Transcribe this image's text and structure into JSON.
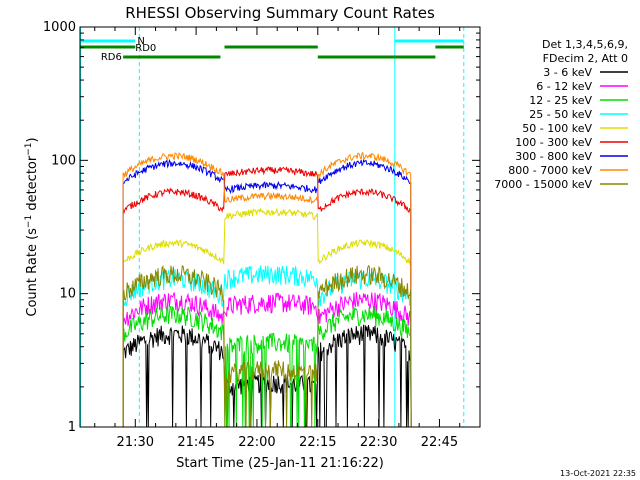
{
  "chart_data": {
    "type": "line",
    "title": "RHESSI Observing Summary Count Rates",
    "ylabel": "Count Rate (s⁻¹ detector⁻¹)",
    "xlabel": "Start Time (25-Jan-11 21:16:22)",
    "yscale": "log",
    "ylim": [
      1,
      1000
    ],
    "y_ticks": [
      "1",
      "10",
      "100",
      "1000"
    ],
    "xlim": [
      "21:16:22",
      "22:55:00"
    ],
    "x_ticks": [
      "21:30",
      "21:45",
      "22:00",
      "22:15",
      "22:30",
      "22:45"
    ],
    "legend_header": [
      "Det 1,3,4,5,6,9,",
      "FDecim 2, Att 0"
    ],
    "legend_position": "right",
    "footer_date": "13-Oct-2021 22:35",
    "series": [
      {
        "name": "3 - 6 keV",
        "color": "#000000",
        "levels": [
          0,
          5,
          2,
          5
        ]
      },
      {
        "name": "6 - 12 keV",
        "color": "#ff00ff",
        "levels": [
          0,
          9,
          8,
          9
        ]
      },
      {
        "name": "12 - 25 keV",
        "color": "#00dd00",
        "levels": [
          0,
          7,
          4,
          7
        ]
      },
      {
        "name": "25 - 50 keV",
        "color": "#00ffff",
        "levels": [
          0,
          13,
          13,
          13
        ]
      },
      {
        "name": "50 - 100 keV",
        "color": "#dddd00",
        "levels": [
          0,
          24,
          38,
          24
        ]
      },
      {
        "name": "100 - 300 keV",
        "color": "#ee0000",
        "levels": [
          0,
          58,
          78,
          58
        ]
      },
      {
        "name": "300 - 800 keV",
        "color": "#0000ee",
        "levels": [
          0,
          95,
          60,
          95
        ]
      },
      {
        "name": "800 - 7000 keV",
        "color": "#ff8800",
        "levels": [
          0,
          108,
          50,
          108
        ]
      },
      {
        "name": "7000 - 15000 keV",
        "color": "#888800",
        "levels": [
          0,
          14,
          2.5,
          14
        ]
      }
    ],
    "status_bars": [
      {
        "label": "N",
        "color": "#00ffff"
      },
      {
        "label": "RD0",
        "color": "#008800"
      },
      {
        "label": "RD6",
        "color": "#008800"
      }
    ],
    "saa_color": "#00ffff"
  }
}
